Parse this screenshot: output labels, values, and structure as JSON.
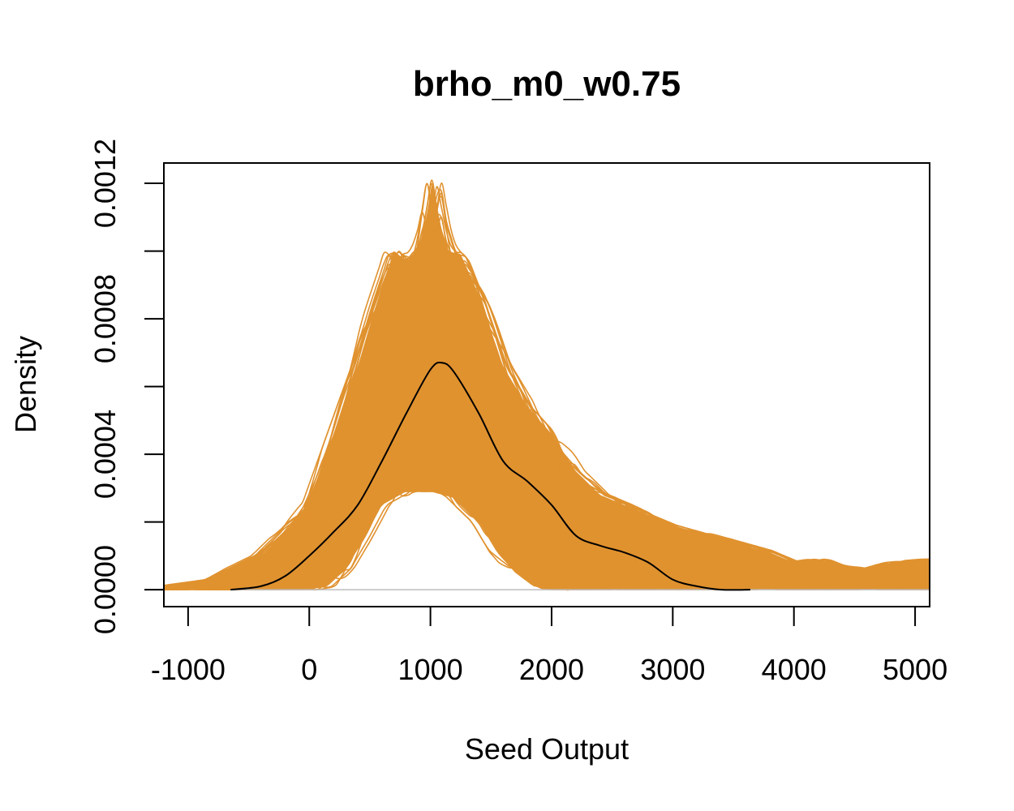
{
  "chart_data": {
    "type": "line",
    "title": "brho_m0_w0.75",
    "xlabel": "Seed Output",
    "ylabel": "Density",
    "xlim": [
      -1200,
      5120
    ],
    "ylim": [
      -5e-05,
      0.00126
    ],
    "x_ticks": [
      -1000,
      0,
      1000,
      2000,
      3000,
      4000,
      5000
    ],
    "x_tick_labels": [
      "-1000",
      "0",
      "1000",
      "2000",
      "3000",
      "4000",
      "5000"
    ],
    "y_ticks": [
      0.0,
      0.0002,
      0.0004,
      0.0006,
      0.0008,
      0.001,
      0.0012
    ],
    "y_tick_labels": [
      "0.0000",
      "",
      "0.0004",
      "",
      "0.0008",
      "",
      "0.0012"
    ],
    "grid": false,
    "legend": "none",
    "colors": {
      "replicates": "#E0922F",
      "observed": "#000000",
      "baseline": "#BEBEBE"
    },
    "series": [
      {
        "role": "observed",
        "x": [
          -650,
          -400,
          -200,
          0,
          200,
          400,
          600,
          800,
          1000,
          1100,
          1200,
          1400,
          1600,
          1800,
          2000,
          2200,
          2400,
          2600,
          2800,
          3000,
          3200,
          3400,
          3640
        ],
        "y": [
          0.0,
          1e-05,
          4e-05,
          0.0001,
          0.00017,
          0.00025,
          0.00038,
          0.00052,
          0.00065,
          0.00067,
          0.00064,
          0.00052,
          0.00038,
          0.00032,
          0.00025,
          0.00016,
          0.00013,
          0.00011,
          8e-05,
          3e-05,
          1e-05,
          0.0,
          0.0
        ]
      },
      {
        "role": "replicates-upper-envelope",
        "x": [
          -1200,
          -800,
          -400,
          -200,
          0,
          200,
          400,
          550,
          700,
          800,
          900,
          950,
          1020,
          1080,
          1150,
          1250,
          1400,
          1600,
          1800,
          2000,
          2200,
          2400,
          2600,
          2800,
          3000,
          3200,
          3400,
          3600,
          3800,
          4000,
          4200,
          4400,
          4600,
          4800,
          5120
        ],
        "y": [
          1e-05,
          3e-05,
          0.0001,
          0.00017,
          0.00026,
          0.00046,
          0.00066,
          0.00084,
          0.001,
          0.00097,
          0.00101,
          0.00107,
          0.00121,
          0.00108,
          0.001,
          0.00099,
          0.00087,
          0.00066,
          0.00054,
          0.00046,
          0.00035,
          0.00028,
          0.00025,
          0.00022,
          0.00019,
          0.00017,
          0.00015,
          0.00013,
          0.00011,
          8e-05,
          9e-05,
          7e-05,
          6e-05,
          8e-05,
          9e-05
        ]
      },
      {
        "role": "replicates-lower-envelope",
        "x": [
          -1200,
          -500,
          0,
          150,
          300,
          450,
          600,
          800,
          1000,
          1200,
          1400,
          1550,
          1700,
          1850,
          2000,
          2100
        ],
        "y": [
          0.0,
          0.0,
          0.0,
          1e-05,
          6e-05,
          0.00015,
          0.00025,
          0.00029,
          0.00029,
          0.00027,
          0.0002,
          0.00011,
          5e-05,
          1e-05,
          0.0,
          0.0
        ]
      },
      {
        "role": "replicates-band-floor",
        "x": [
          2100,
          3000,
          4000,
          5120
        ],
        "y": [
          0.0,
          0.0,
          0.0,
          0.0
        ]
      }
    ]
  }
}
